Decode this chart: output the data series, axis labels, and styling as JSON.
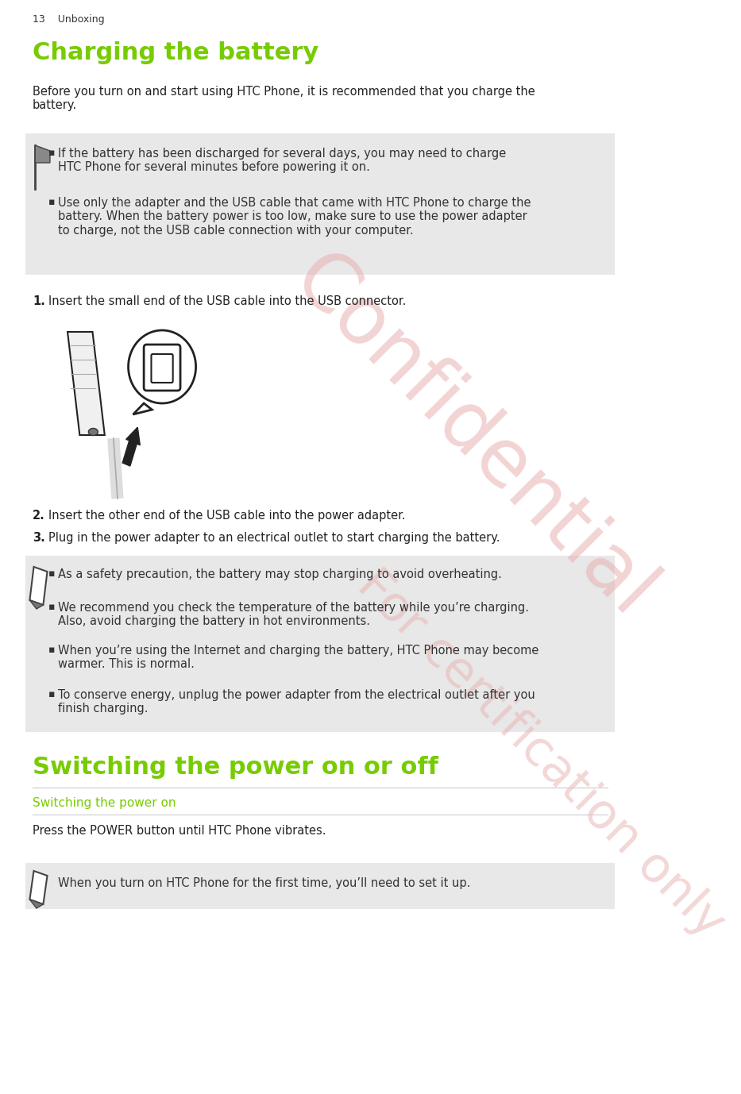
{
  "page_width": 9.33,
  "page_height": 13.78,
  "bg_color": "#ffffff",
  "header_text": "13    Unboxing",
  "header_font_size": 9,
  "header_color": "#333333",
  "title": "Charging the battery",
  "title_color": "#77cc00",
  "title_font_size": 22,
  "intro_text": "Before you turn on and start using HTC Phone, it is recommended that you charge the\nbattery.",
  "intro_font_size": 10.5,
  "note_box_color": "#e8e8e8",
  "note_bullets": [
    "If the battery has been discharged for several days, you may need to charge\nHTC Phone for several minutes before powering it on.",
    "Use only the adapter and the USB cable that came with HTC Phone to charge the\nbattery. When the battery power is too low, make sure to use the power adapter\nto charge, not the USB cable connection with your computer."
  ],
  "steps": [
    "Insert the small end of the USB cable into the USB connector.",
    "Insert the other end of the USB cable into the power adapter.",
    "Plug in the power adapter to an electrical outlet to start charging the battery."
  ],
  "note_bullets2": [
    "As a safety precaution, the battery may stop charging to avoid overheating.",
    "We recommend you check the temperature of the battery while you’re charging.\nAlso, avoid charging the battery in hot environments.",
    "When you’re using the Internet and charging the battery, HTC Phone may become\nwarmer. This is normal.",
    "To conserve energy, unplug the power adapter from the electrical outlet after you\nfinish charging."
  ],
  "section2_title": "Switching the power on or off",
  "section2_title_color": "#77cc00",
  "section2_title_font_size": 22,
  "subsection_title": "Switching the power on",
  "subsection_title_color": "#77cc00",
  "subsection_title_font_size": 11,
  "power_on_text": "Press the POWER button until HTC Phone vibrates.",
  "note_text_final": "When you turn on HTC Phone for the first time, you’ll need to set it up.",
  "watermark_color": "#e8b0b0",
  "body_font_size": 10.5,
  "bullet_char": "▪"
}
